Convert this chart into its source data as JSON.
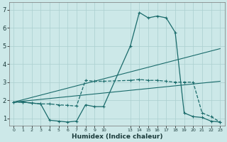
{
  "xlabel": "Humidex (Indice chaleur)",
  "background_color": "#cce8e8",
  "grid_color": "#aacfcf",
  "line_color": "#1a6b6b",
  "xlim": [
    -0.5,
    23.5
  ],
  "ylim": [
    0.6,
    7.4
  ],
  "xtick_positions": [
    0,
    1,
    2,
    3,
    4,
    5,
    6,
    7,
    8,
    9,
    10,
    13,
    14,
    15,
    16,
    17,
    18,
    19,
    20,
    21,
    22,
    23
  ],
  "xtick_labels": [
    "0",
    "1",
    "2",
    "3",
    "4",
    "5",
    "6",
    "7",
    "8",
    "9",
    "10",
    "13",
    "14",
    "15",
    "16",
    "17",
    "18",
    "19",
    "20",
    "21",
    "22",
    "23"
  ],
  "yticks": [
    1,
    2,
    3,
    4,
    5,
    6,
    7
  ],
  "series": [
    {
      "x": [
        0,
        1,
        2,
        3,
        4,
        5,
        6,
        7,
        8,
        9,
        10,
        13,
        14,
        15,
        16,
        17,
        18,
        19,
        20,
        21,
        22,
        23
      ],
      "y": [
        1.9,
        1.9,
        1.85,
        1.8,
        0.9,
        0.85,
        0.8,
        0.85,
        1.75,
        1.65,
        1.65,
        5.0,
        6.85,
        6.55,
        6.65,
        6.55,
        5.75,
        1.3,
        1.1,
        1.05,
        0.85,
        0.8
      ],
      "linestyle": "-",
      "marker": true,
      "linewidth": 0.9
    },
    {
      "x": [
        0,
        1,
        2,
        3,
        4,
        5,
        6,
        7,
        8,
        9,
        10,
        13,
        14,
        15,
        16,
        17,
        18,
        19,
        20,
        21,
        22,
        23
      ],
      "y": [
        1.9,
        1.9,
        1.85,
        1.8,
        1.8,
        1.75,
        1.72,
        1.68,
        3.1,
        3.05,
        3.05,
        3.1,
        3.15,
        3.1,
        3.1,
        3.05,
        3.0,
        3.0,
        3.0,
        1.3,
        1.1,
        0.8
      ],
      "linestyle": "--",
      "marker": true,
      "linewidth": 0.9
    },
    {
      "x": [
        0,
        23
      ],
      "y": [
        1.9,
        4.85
      ],
      "linestyle": "-",
      "marker": false,
      "linewidth": 0.8
    },
    {
      "x": [
        0,
        23
      ],
      "y": [
        1.9,
        3.05
      ],
      "linestyle": "-",
      "marker": false,
      "linewidth": 0.8
    }
  ]
}
